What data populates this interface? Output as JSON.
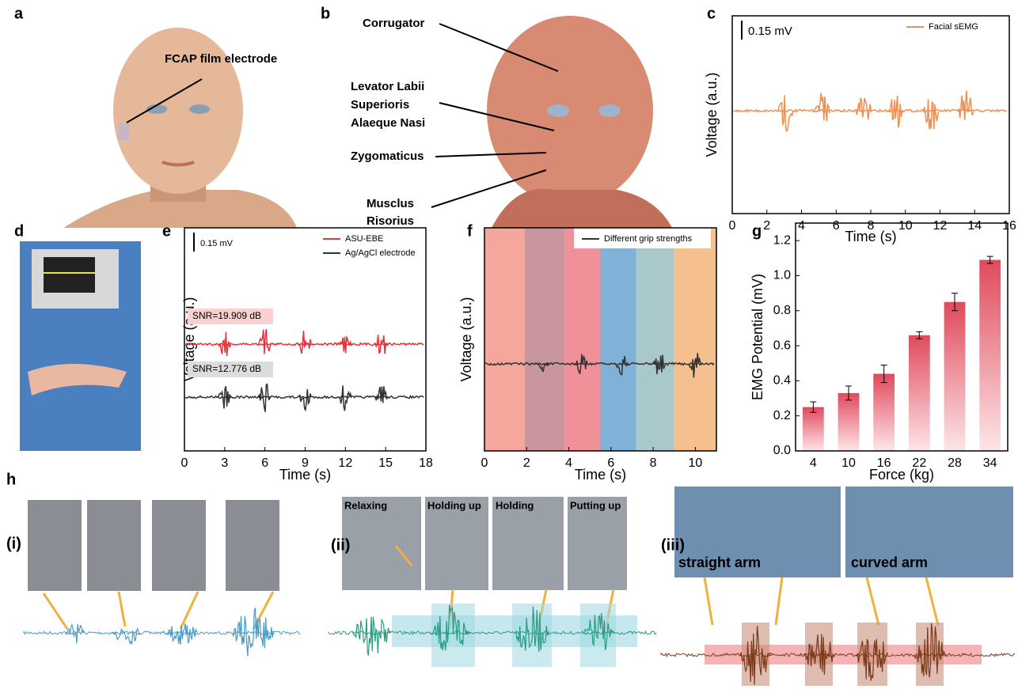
{
  "illustrations": {
    "a": {
      "label": "a",
      "annotation": "FCAP film electrode"
    },
    "b": {
      "label": "b",
      "annotations": [
        "Corrugator",
        "Levator Labii",
        "Superioris",
        "Alaeque Nasi",
        "Zygomaticus",
        "Musclus",
        "Risorius"
      ]
    },
    "d": {
      "label": "d"
    },
    "h": {
      "label": "h",
      "parts": [
        "(i)",
        "(ii)",
        "(iii)"
      ],
      "captions": [
        "Relaxing",
        "Holding up",
        "Holding",
        "Putting up",
        "straight arm",
        "curved arm"
      ]
    }
  },
  "chart_data": [
    {
      "type": "line",
      "label": "c",
      "scale_bar": "0.15 mV",
      "y_label": "Voltage (a.u.)",
      "x_label": "Time (s)",
      "xlim": [
        0,
        16
      ],
      "xticks": [
        0,
        2,
        4,
        6,
        8,
        10,
        12,
        14,
        16
      ],
      "series": [
        {
          "name": "Facial sEMG",
          "color": "#f09050",
          "bursts": [
            3.1,
            5.2,
            7.6,
            9.5,
            11.5,
            13.5
          ]
        }
      ]
    },
    {
      "type": "line",
      "label": "e",
      "scale_bar": "0.15 mV",
      "y_label": "Voltage (a.u.)",
      "x_label": "Time (s)",
      "xlim": [
        0,
        18
      ],
      "xticks": [
        0,
        3,
        6,
        9,
        12,
        15,
        18
      ],
      "series": [
        {
          "name": "ASU-EBE",
          "color": "#e8323c",
          "annotation": "SNR=19.909 dB",
          "bursts": [
            3,
            6,
            9,
            12,
            14.7
          ]
        },
        {
          "name": "Ag/AgCl electrode",
          "color": "#333333",
          "annotation": "SNR=12.776 dB",
          "bursts": [
            3,
            6,
            9,
            12,
            14.7
          ]
        }
      ]
    },
    {
      "type": "line",
      "label": "f",
      "y_label": "Voltage (a.u.)",
      "x_label": "Time (s)",
      "xlim": [
        0,
        11
      ],
      "xticks": [
        0,
        2,
        4,
        6,
        8,
        10
      ],
      "band_edges": [
        0,
        1.9,
        3.8,
        5.5,
        7.2,
        9,
        11
      ],
      "band_colors": [
        "#f4a79a",
        "#c8969c",
        "#f09098",
        "#7fb2d6",
        "#a9c8cc",
        "#f6c08e"
      ],
      "series": [
        {
          "name": "Different grip strengths",
          "color": "#333333",
          "bursts": [
            2.8,
            4.6,
            6.5,
            8.3,
            10
          ]
        }
      ]
    },
    {
      "type": "bar",
      "label": "g",
      "y_label": "EMG Potential (mV)",
      "x_label": "Force (kg)",
      "categories": [
        "4",
        "10",
        "16",
        "22",
        "28",
        "34"
      ],
      "values": [
        0.25,
        0.33,
        0.44,
        0.66,
        0.85,
        1.09
      ],
      "errors": [
        0.03,
        0.04,
        0.05,
        0.02,
        0.05,
        0.02
      ],
      "color": "#e04a5c",
      "ylim": [
        0,
        1.3
      ],
      "yticks": [
        {
          "value": 0,
          "label": "0.0"
        },
        0.2,
        0.4,
        0.6,
        0.8,
        {
          "value": 1,
          "label": "1.0"
        },
        1.2
      ]
    }
  ]
}
